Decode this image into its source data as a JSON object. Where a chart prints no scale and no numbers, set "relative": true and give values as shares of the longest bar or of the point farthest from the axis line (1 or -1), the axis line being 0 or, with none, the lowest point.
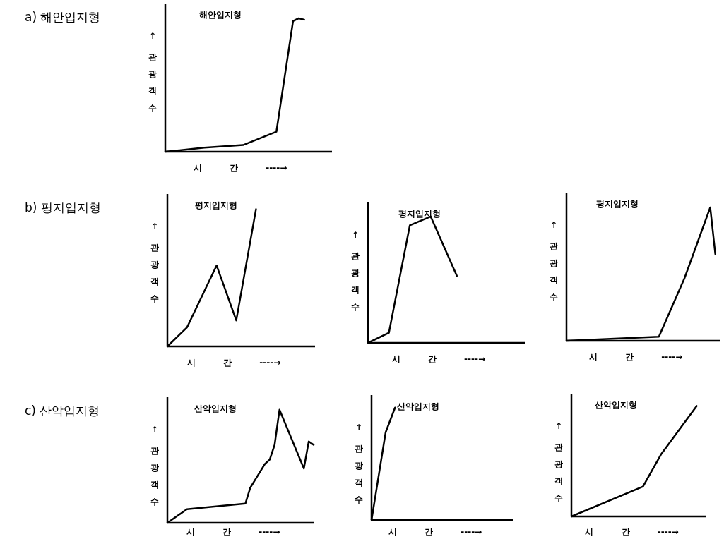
{
  "chart_data": [
    {
      "type": "line",
      "relative": true,
      "title": "해안입지형",
      "ylabel": "↑ 관광객수",
      "xlabel": "시 간 ----→",
      "annotations": [
        "a) 해안입지형"
      ],
      "categories": [
        null,
        null,
        null,
        null,
        null,
        null,
        null,
        null,
        null,
        null,
        null,
        null,
        null,
        null,
        null,
        null,
        null,
        null,
        null,
        null,
        null,
        null,
        null,
        null,
        null,
        null,
        null,
        null,
        null,
        null,
        null
      ],
      "series": [
        {
          "color": "#000000",
          "values": [
            0,
            null,
            null,
            null,
            null,
            null,
            null,
            0.03,
            null,
            null,
            null,
            null,
            null,
            null,
            0.05,
            null,
            null,
            null,
            null,
            null,
            0.15,
            null,
            null,
            0.98,
            1,
            0.99,
            null,
            null,
            null,
            null,
            null
          ]
        }
      ]
    },
    {
      "type": "line",
      "relative": true,
      "title": "평지입지형",
      "ylabel": "↑ 관광객수",
      "xlabel": "시 간 ----→",
      "annotations": [
        "b) 평지입지형"
      ],
      "categories": [
        null,
        null,
        null,
        null,
        null,
        null,
        null,
        null,
        null,
        null,
        null,
        null,
        null,
        null,
        null,
        null,
        null,
        null,
        null,
        null,
        null,
        null,
        null,
        null,
        null,
        null,
        null,
        null,
        null,
        null,
        null
      ],
      "series": [
        {
          "color": "#000000",
          "values": [
            0,
            null,
            null,
            null,
            0.14,
            null,
            null,
            null,
            null,
            null,
            0.59,
            null,
            null,
            null,
            0.19,
            null,
            null,
            null,
            1,
            null,
            null,
            null,
            null,
            null,
            null,
            null,
            null,
            null,
            null,
            null,
            null
          ]
        }
      ]
    },
    {
      "type": "line",
      "relative": true,
      "title": "평지입지형",
      "ylabel": "↑ 관광객수",
      "xlabel": "시 간 ----→",
      "categories": [
        null,
        null,
        null,
        null,
        null,
        null,
        null,
        null,
        null,
        null,
        null,
        null,
        null,
        null,
        null,
        null,
        null,
        null,
        null,
        null,
        null,
        null,
        null,
        null,
        null,
        null,
        null,
        null,
        null,
        null,
        null
      ],
      "series": [
        {
          "color": "#000000",
          "values": [
            0,
            null,
            null,
            null,
            0.08,
            null,
            null,
            null,
            0.93,
            null,
            null,
            null,
            1,
            null,
            null,
            null,
            null,
            0.53,
            null,
            null,
            null,
            null,
            null,
            null,
            null,
            null,
            null,
            null,
            null,
            null,
            null
          ]
        }
      ]
    },
    {
      "type": "line",
      "relative": true,
      "title": "평지입지형",
      "ylabel": "↑ 관광객수",
      "xlabel": "시 간 ----→",
      "categories": [
        null,
        null,
        null,
        null,
        null,
        null,
        null,
        null,
        null,
        null,
        null,
        null,
        null,
        null,
        null,
        null,
        null,
        null,
        null,
        null,
        null,
        null,
        null,
        null,
        null,
        null,
        null,
        null,
        null,
        null,
        null
      ],
      "series": [
        {
          "color": "#000000",
          "values": [
            0,
            null,
            null,
            null,
            null,
            null,
            null,
            null,
            null,
            null,
            null,
            null,
            null,
            null,
            null,
            null,
            null,
            null,
            0.03,
            null,
            null,
            null,
            null,
            0.47,
            null,
            null,
            null,
            null,
            1,
            0.65,
            null
          ]
        }
      ]
    },
    {
      "type": "line",
      "relative": true,
      "title": "산악입지형",
      "ylabel": "↑ 관광객수",
      "xlabel": "시 간 ----→",
      "annotations": [
        "c) 산악입지형"
      ],
      "categories": [
        null,
        null,
        null,
        null,
        null,
        null,
        null,
        null,
        null,
        null,
        null,
        null,
        null,
        null,
        null,
        null,
        null,
        null,
        null,
        null,
        null,
        null,
        null,
        null,
        null,
        null,
        null,
        null,
        null,
        null,
        null
      ],
      "series": [
        {
          "color": "#000000",
          "values": [
            0,
            null,
            null,
            null,
            0.12,
            null,
            null,
            null,
            null,
            null,
            null,
            null,
            null,
            null,
            null,
            null,
            0.17,
            0.31,
            null,
            null,
            0.52,
            0.56,
            0.69,
            1,
            null,
            null,
            null,
            null,
            0.48,
            0.72,
            0.69
          ]
        }
      ]
    },
    {
      "type": "line",
      "relative": true,
      "title": "산악입지형",
      "ylabel": "↑ 관광객수",
      "xlabel": "시 간 ----→",
      "categories": [
        null,
        null,
        null,
        null,
        null,
        null,
        null,
        null,
        null,
        null,
        null,
        null,
        null,
        null,
        null,
        null,
        null,
        null,
        null,
        null,
        null,
        null,
        null,
        null,
        null,
        null,
        null,
        null,
        null,
        null,
        null
      ],
      "series": [
        {
          "color": "#000000",
          "values": [
            0,
            null,
            null,
            0.78,
            null,
            1,
            null,
            null,
            null,
            null,
            null,
            null,
            null,
            null,
            null,
            null,
            null,
            null,
            null,
            null,
            null,
            null,
            null,
            null,
            null,
            null,
            null,
            null,
            null,
            null,
            null
          ]
        }
      ]
    },
    {
      "type": "line",
      "relative": true,
      "title": "산악입지형",
      "ylabel": "↑ 관광객수",
      "xlabel": "시 간 ----→",
      "categories": [
        null,
        null,
        null,
        null,
        null,
        null,
        null,
        null,
        null,
        null,
        null,
        null,
        null,
        null,
        null,
        null,
        null,
        null,
        null,
        null,
        null,
        null,
        null,
        null,
        null,
        null,
        null,
        null,
        null,
        null,
        null
      ],
      "series": [
        {
          "color": "#000000",
          "values": [
            0,
            null,
            null,
            null,
            null,
            null,
            null,
            null,
            null,
            null,
            null,
            null,
            null,
            null,
            null,
            null,
            0.27,
            null,
            null,
            null,
            0.56,
            null,
            null,
            null,
            null,
            null,
            null,
            null,
            1,
            null,
            null
          ]
        }
      ]
    }
  ]
}
